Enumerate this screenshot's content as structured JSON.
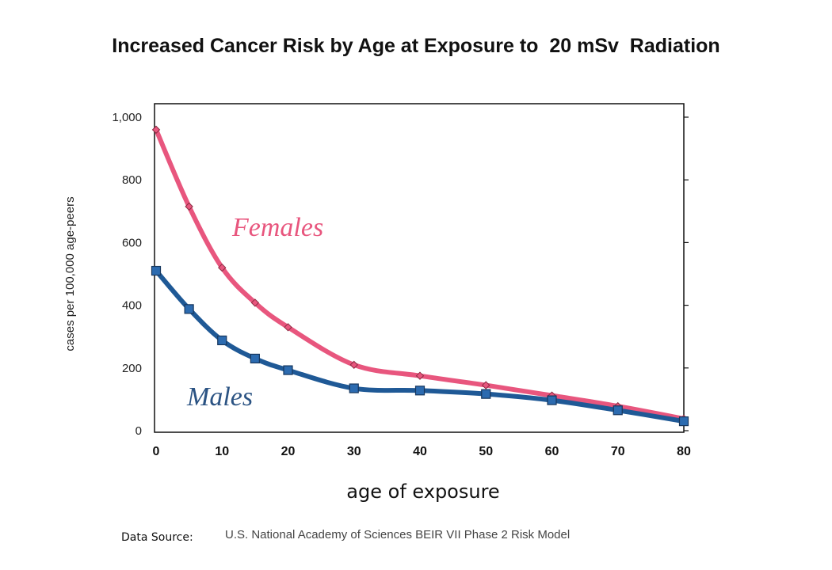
{
  "chart_data": {
    "type": "line",
    "title": "Increased Cancer Risk by Age at Exposure to  20 mSv  Radiation",
    "xlabel": "age of exposure",
    "ylabel": "cases per 100,000 age-peers",
    "xlim": [
      0,
      80
    ],
    "ylim": [
      0,
      1000
    ],
    "x_ticks": [
      "0",
      "10",
      "20",
      "30",
      "40",
      "50",
      "60",
      "70",
      "80"
    ],
    "y_ticks": [
      "0",
      "200",
      "400",
      "600",
      "800",
      "1,000"
    ],
    "grid": false,
    "series": [
      {
        "name": "Females",
        "color": "#e8567e",
        "marker": "diamond",
        "x": [
          0,
          5,
          10,
          15,
          20,
          30,
          40,
          50,
          60,
          70,
          80
        ],
        "y": [
          960,
          715,
          520,
          408,
          330,
          210,
          175,
          145,
          112,
          78,
          38
        ]
      },
      {
        "name": "Males",
        "color": "#1f5996",
        "marker": "square",
        "x": [
          0,
          5,
          10,
          15,
          20,
          30,
          40,
          50,
          60,
          70,
          80
        ],
        "y": [
          510,
          388,
          288,
          230,
          193,
          135,
          128,
          117,
          97,
          65,
          30
        ]
      }
    ]
  },
  "source": {
    "prefix": "Data Source:",
    "text": "U.S. National Academy of Sciences BEIR VII Phase 2 Risk Model"
  }
}
